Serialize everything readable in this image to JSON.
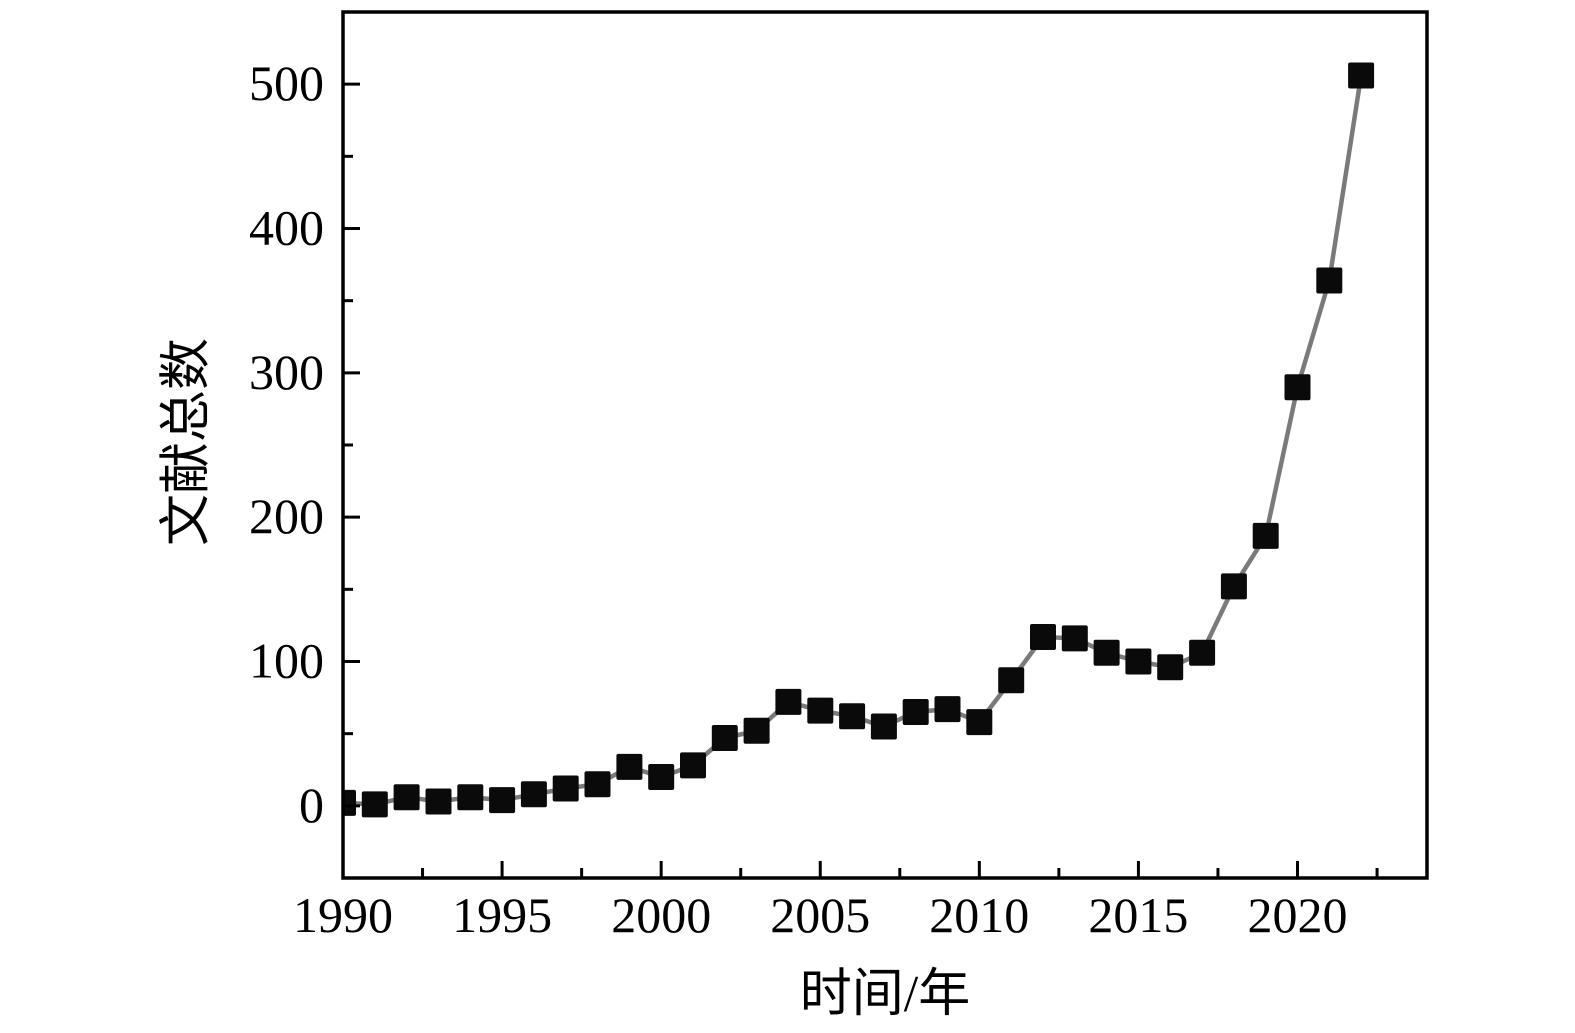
{
  "chart_data": {
    "type": "line",
    "title": "",
    "xlabel": "时间/年",
    "ylabel": "文献总数",
    "series": [
      {
        "name": "文献总数",
        "x": [
          1990,
          1991,
          1992,
          1993,
          1994,
          1995,
          1996,
          1997,
          1998,
          1999,
          2000,
          2001,
          2002,
          2003,
          2004,
          2005,
          2006,
          2007,
          2008,
          2009,
          2010,
          2011,
          2012,
          2013,
          2014,
          2015,
          2016,
          2017,
          2018,
          2019,
          2020,
          2021,
          2022
        ],
        "values": [
          2,
          1,
          6,
          3,
          6,
          4,
          8,
          12,
          15,
          27,
          20,
          28,
          47,
          52,
          72,
          66,
          62,
          55,
          65,
          67,
          58,
          87,
          117,
          116,
          106,
          100,
          96,
          106,
          152,
          187,
          290,
          364,
          506
        ]
      }
    ],
    "marker": "square",
    "grid": false,
    "legend_position": "none",
    "xlim": [
      1990,
      2024.07
    ],
    "ylim": [
      -50,
      550
    ],
    "xticks_major": [
      1990,
      1995,
      2000,
      2005,
      2010,
      2015,
      2020
    ],
    "xticks_minor": [
      1992.5,
      1997.5,
      2002.5,
      2007.5,
      2012.5,
      2017.5,
      2022.5
    ],
    "yticks_major": [
      0,
      100,
      200,
      300,
      400,
      500
    ],
    "yticks_minor": [
      50,
      150,
      250,
      350,
      450
    ],
    "colors": {
      "marker": "#0a0a0a",
      "line": "#7a7a7a",
      "axis": "#000000",
      "text": "#000000",
      "background": "#ffffff"
    }
  }
}
